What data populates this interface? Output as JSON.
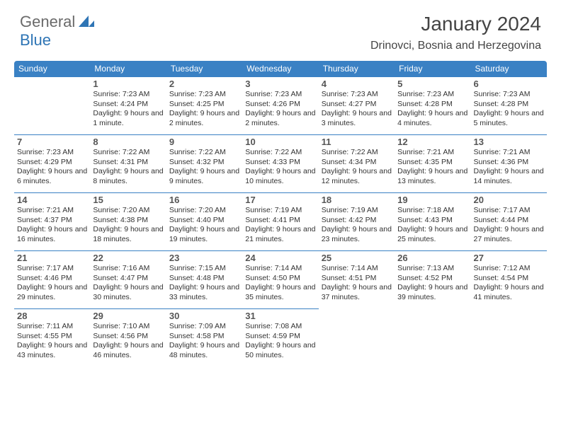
{
  "logo": {
    "general": "General",
    "blue": "Blue"
  },
  "title": "January 2024",
  "location": "Drinovci, Bosnia and Herzegovina",
  "colors": {
    "header_bg": "#3a81c4",
    "header_text": "#ffffff",
    "border": "#3a81c4",
    "text": "#333333",
    "daynum": "#555555",
    "logo_gray": "#6a6a6a",
    "logo_blue": "#2f75b5",
    "bg": "#ffffff"
  },
  "day_headers": [
    "Sunday",
    "Monday",
    "Tuesday",
    "Wednesday",
    "Thursday",
    "Friday",
    "Saturday"
  ],
  "weeks": [
    [
      null,
      {
        "n": "1",
        "sr": "7:23 AM",
        "ss": "4:24 PM",
        "dl": "9 hours and 1 minute."
      },
      {
        "n": "2",
        "sr": "7:23 AM",
        "ss": "4:25 PM",
        "dl": "9 hours and 2 minutes."
      },
      {
        "n": "3",
        "sr": "7:23 AM",
        "ss": "4:26 PM",
        "dl": "9 hours and 2 minutes."
      },
      {
        "n": "4",
        "sr": "7:23 AM",
        "ss": "4:27 PM",
        "dl": "9 hours and 3 minutes."
      },
      {
        "n": "5",
        "sr": "7:23 AM",
        "ss": "4:28 PM",
        "dl": "9 hours and 4 minutes."
      },
      {
        "n": "6",
        "sr": "7:23 AM",
        "ss": "4:28 PM",
        "dl": "9 hours and 5 minutes."
      }
    ],
    [
      {
        "n": "7",
        "sr": "7:23 AM",
        "ss": "4:29 PM",
        "dl": "9 hours and 6 minutes."
      },
      {
        "n": "8",
        "sr": "7:22 AM",
        "ss": "4:31 PM",
        "dl": "9 hours and 8 minutes."
      },
      {
        "n": "9",
        "sr": "7:22 AM",
        "ss": "4:32 PM",
        "dl": "9 hours and 9 minutes."
      },
      {
        "n": "10",
        "sr": "7:22 AM",
        "ss": "4:33 PM",
        "dl": "9 hours and 10 minutes."
      },
      {
        "n": "11",
        "sr": "7:22 AM",
        "ss": "4:34 PM",
        "dl": "9 hours and 12 minutes."
      },
      {
        "n": "12",
        "sr": "7:21 AM",
        "ss": "4:35 PM",
        "dl": "9 hours and 13 minutes."
      },
      {
        "n": "13",
        "sr": "7:21 AM",
        "ss": "4:36 PM",
        "dl": "9 hours and 14 minutes."
      }
    ],
    [
      {
        "n": "14",
        "sr": "7:21 AM",
        "ss": "4:37 PM",
        "dl": "9 hours and 16 minutes."
      },
      {
        "n": "15",
        "sr": "7:20 AM",
        "ss": "4:38 PM",
        "dl": "9 hours and 18 minutes."
      },
      {
        "n": "16",
        "sr": "7:20 AM",
        "ss": "4:40 PM",
        "dl": "9 hours and 19 minutes."
      },
      {
        "n": "17",
        "sr": "7:19 AM",
        "ss": "4:41 PM",
        "dl": "9 hours and 21 minutes."
      },
      {
        "n": "18",
        "sr": "7:19 AM",
        "ss": "4:42 PM",
        "dl": "9 hours and 23 minutes."
      },
      {
        "n": "19",
        "sr": "7:18 AM",
        "ss": "4:43 PM",
        "dl": "9 hours and 25 minutes."
      },
      {
        "n": "20",
        "sr": "7:17 AM",
        "ss": "4:44 PM",
        "dl": "9 hours and 27 minutes."
      }
    ],
    [
      {
        "n": "21",
        "sr": "7:17 AM",
        "ss": "4:46 PM",
        "dl": "9 hours and 29 minutes."
      },
      {
        "n": "22",
        "sr": "7:16 AM",
        "ss": "4:47 PM",
        "dl": "9 hours and 30 minutes."
      },
      {
        "n": "23",
        "sr": "7:15 AM",
        "ss": "4:48 PM",
        "dl": "9 hours and 33 minutes."
      },
      {
        "n": "24",
        "sr": "7:14 AM",
        "ss": "4:50 PM",
        "dl": "9 hours and 35 minutes."
      },
      {
        "n": "25",
        "sr": "7:14 AM",
        "ss": "4:51 PM",
        "dl": "9 hours and 37 minutes."
      },
      {
        "n": "26",
        "sr": "7:13 AM",
        "ss": "4:52 PM",
        "dl": "9 hours and 39 minutes."
      },
      {
        "n": "27",
        "sr": "7:12 AM",
        "ss": "4:54 PM",
        "dl": "9 hours and 41 minutes."
      }
    ],
    [
      {
        "n": "28",
        "sr": "7:11 AM",
        "ss": "4:55 PM",
        "dl": "9 hours and 43 minutes."
      },
      {
        "n": "29",
        "sr": "7:10 AM",
        "ss": "4:56 PM",
        "dl": "9 hours and 46 minutes."
      },
      {
        "n": "30",
        "sr": "7:09 AM",
        "ss": "4:58 PM",
        "dl": "9 hours and 48 minutes."
      },
      {
        "n": "31",
        "sr": "7:08 AM",
        "ss": "4:59 PM",
        "dl": "9 hours and 50 minutes."
      },
      null,
      null,
      null
    ]
  ],
  "labels": {
    "sunrise": "Sunrise:",
    "sunset": "Sunset:",
    "daylight": "Daylight:"
  }
}
